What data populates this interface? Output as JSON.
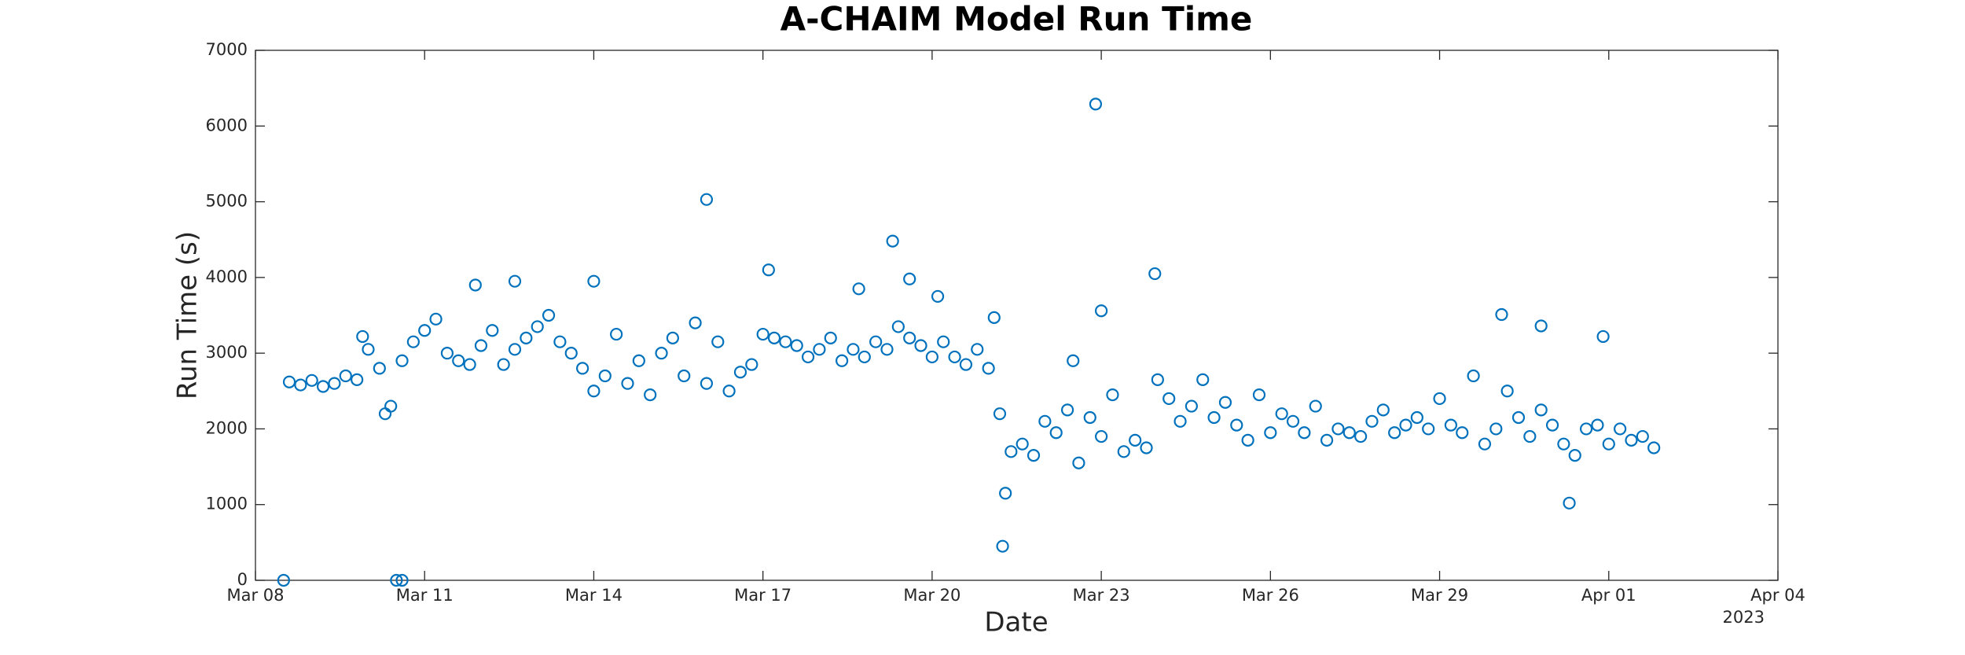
{
  "chart_data": {
    "type": "scatter",
    "title": "A-CHAIM Model Run Time",
    "x_label": "Date",
    "y_label": "Run Time (s)",
    "x_axis_year": "2023",
    "series": [
      {
        "color": "#0072bd",
        "x": [
          0.6,
          0.8,
          1,
          1.2,
          1.4,
          1.6,
          1.8,
          2,
          2.2,
          2.4,
          2.6,
          2.8,
          3,
          3.2,
          3.4,
          3.6,
          3.8,
          4,
          4.2,
          4.4,
          4.6,
          4.8,
          5,
          5.2,
          5.4,
          5.6,
          5.8,
          6,
          6.2,
          6.4,
          6.6,
          6.8,
          7,
          7.2,
          7.4,
          7.6,
          7.8,
          8,
          8.2,
          8.4,
          8.6,
          8.8,
          9,
          9.2,
          9.4,
          9.6,
          9.8,
          10,
          10.2,
          10.4,
          10.6,
          10.8,
          11,
          11.2,
          11.4,
          11.6,
          11.8,
          12,
          12.2,
          12.4,
          12.6,
          12.8,
          13,
          13.2,
          13.4,
          13.6,
          13.8,
          14,
          14.2,
          14.4,
          14.6,
          14.8,
          15,
          15.2,
          15.4,
          15.6,
          15.8,
          16,
          16.2,
          16.4,
          16.6,
          16.8,
          17,
          17.2,
          17.4,
          17.6,
          17.8,
          18,
          18.2,
          18.4,
          18.6,
          18.8,
          19,
          19.2,
          19.4,
          19.6,
          19.8,
          20,
          20.2,
          20.4,
          20.6,
          20.8,
          21,
          21.2,
          21.4,
          21.6,
          21.8,
          22,
          22.2,
          22.4,
          22.6,
          22.8,
          23,
          23.2,
          23.4,
          23.6,
          23.8,
          24,
          24.2,
          24.4,
          24.6,
          24.8,
          0.5,
          2.5,
          2.6,
          3.9,
          4.6,
          6,
          8,
          9.1,
          10.7,
          11.3,
          11.6,
          12.1,
          13.1,
          13.25,
          13.3,
          14.5,
          14.9,
          15,
          15.95,
          22.1,
          22.8,
          23.3,
          23.9,
          2.3,
          1.9
        ],
        "values": [
          2620,
          2580,
          2640,
          2560,
          2600,
          2700,
          2650,
          3050,
          2800,
          2300,
          2900,
          3150,
          3300,
          3450,
          3000,
          2900,
          2850,
          3100,
          3300,
          2850,
          3050,
          3200,
          3350,
          3500,
          3150,
          3000,
          2800,
          2500,
          2700,
          3250,
          2600,
          2900,
          2450,
          3000,
          3200,
          2700,
          3400,
          2600,
          3150,
          2500,
          2750,
          2850,
          3250,
          3200,
          3150,
          3100,
          2950,
          3050,
          3200,
          2900,
          3050,
          2950,
          3150,
          3050,
          3350,
          3200,
          3100,
          2950,
          3150,
          2950,
          2850,
          3050,
          2800,
          2200,
          1700,
          1800,
          1650,
          2100,
          1950,
          2250,
          1550,
          2150,
          1900,
          2450,
          1700,
          1850,
          1750,
          2650,
          2400,
          2100,
          2300,
          2650,
          2150,
          2350,
          2050,
          1850,
          2450,
          1950,
          2200,
          2100,
          1950,
          2300,
          1850,
          2000,
          1950,
          1900,
          2100,
          2250,
          1950,
          2050,
          2150,
          2000,
          2400,
          2050,
          1950,
          2700,
          1800,
          2000,
          2500,
          2150,
          1900,
          2250,
          2050,
          1800,
          1650,
          2000,
          2050,
          1800,
          2000,
          1850,
          1900,
          1750,
          0,
          0,
          0,
          3900,
          3950,
          3950,
          5030,
          4100,
          3850,
          4480,
          3980,
          3750,
          3470,
          450,
          1150,
          2900,
          6290,
          3560,
          4050,
          3510,
          3360,
          1020,
          3220,
          2200,
          3220
        ]
      }
    ],
    "xlim": [
      0,
      27
    ],
    "xticks": [
      {
        "value": 0,
        "label": "Mar 08"
      },
      {
        "value": 3,
        "label": "Mar 11"
      },
      {
        "value": 6,
        "label": "Mar 14"
      },
      {
        "value": 9,
        "label": "Mar 17"
      },
      {
        "value": 12,
        "label": "Mar 20"
      },
      {
        "value": 15,
        "label": "Mar 23"
      },
      {
        "value": 18,
        "label": "Mar 26"
      },
      {
        "value": 21,
        "label": "Mar 29"
      },
      {
        "value": 24,
        "label": "Apr 01"
      },
      {
        "value": 27,
        "label": "Apr 04"
      }
    ],
    "ylim": [
      0,
      7000
    ],
    "yticks": [
      0,
      1000,
      2000,
      3000,
      4000,
      5000,
      6000,
      7000
    ],
    "grid": false
  }
}
